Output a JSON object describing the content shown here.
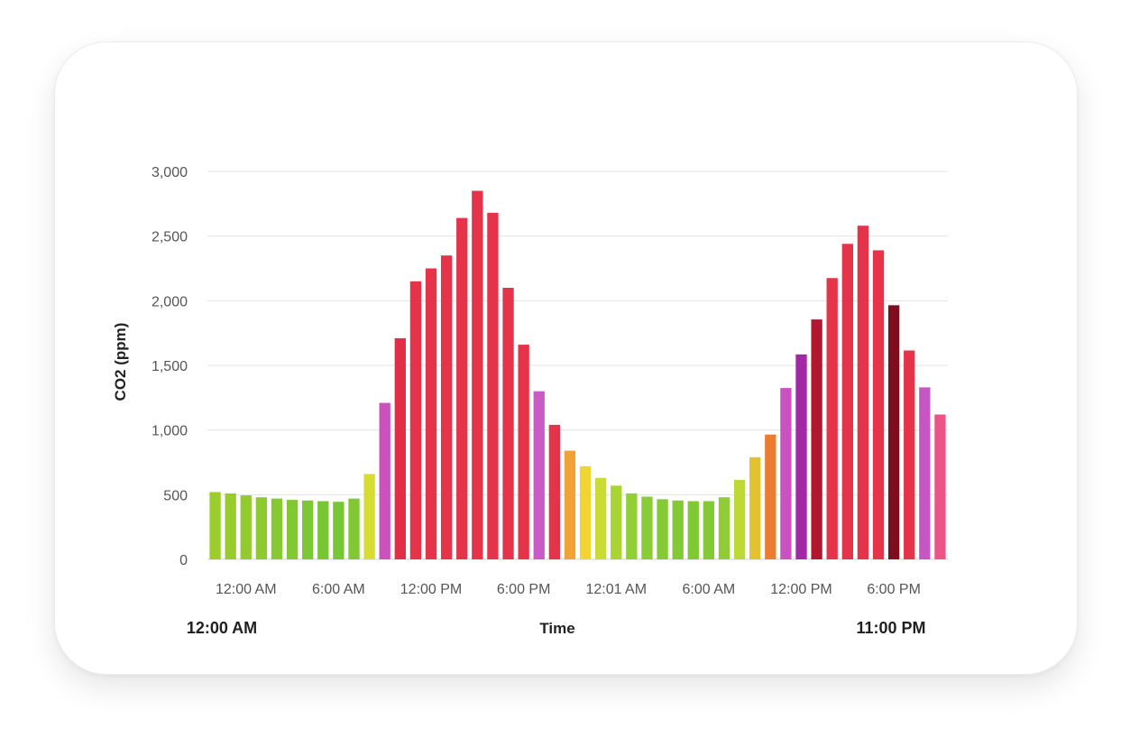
{
  "chart_data": {
    "type": "bar",
    "title": "",
    "xlabel": "Time",
    "ylabel": "CO2 (ppm)",
    "ylim": [
      0,
      3000
    ],
    "yticks": [
      0,
      500,
      1000,
      1500,
      2000,
      2500,
      3000
    ],
    "ytick_labels": [
      "0",
      "500",
      "1,000",
      "1,500",
      "2,000",
      "2,500",
      "3,000"
    ],
    "x_tick_labels": [
      {
        "bar_index": 2,
        "label": "12:00 AM"
      },
      {
        "bar_index": 8,
        "label": "6:00 AM"
      },
      {
        "bar_index": 14,
        "label": "12:00 PM"
      },
      {
        "bar_index": 20,
        "label": "6:00 PM"
      },
      {
        "bar_index": 26,
        "label": "12:01 AM"
      },
      {
        "bar_index": 32,
        "label": "6:00 AM"
      },
      {
        "bar_index": 38,
        "label": "12:00 PM"
      },
      {
        "bar_index": 44,
        "label": "6:00 PM"
      }
    ],
    "range_start_label": "12:00 AM",
    "range_end_label": "11:00 PM",
    "grid": true,
    "legend": "none",
    "values": [
      520,
      510,
      495,
      480,
      470,
      460,
      455,
      450,
      445,
      470,
      660,
      1210,
      1710,
      2150,
      2250,
      2350,
      2640,
      2850,
      2680,
      2100,
      1660,
      1300,
      1040,
      840,
      720,
      630,
      570,
      510,
      485,
      465,
      455,
      450,
      450,
      480,
      615,
      790,
      965,
      1325,
      1585,
      1855,
      2175,
      2440,
      2580,
      2390,
      1965,
      1615,
      1330,
      1120
    ],
    "colors": [
      "#9ccd2d",
      "#98cc2d",
      "#93cb2f",
      "#8dca31",
      "#87c932",
      "#81c833",
      "#7bc734",
      "#77c735",
      "#76c635",
      "#82c834",
      "#d6dc32",
      "#cb52bd",
      "#df2e45",
      "#e5344a",
      "#e5344a",
      "#e5344a",
      "#e5344a",
      "#e5344a",
      "#e5344a",
      "#e5344a",
      "#e5344a",
      "#c85bc6",
      "#e5334a",
      "#f0a237",
      "#f0d534",
      "#cbdb35",
      "#a8d533",
      "#91cf36",
      "#89cc35",
      "#84ca35",
      "#82ca35",
      "#80c935",
      "#81c935",
      "#8fcc35",
      "#bcd935",
      "#e2c231",
      "#ec7c30",
      "#c952c0",
      "#a229a6",
      "#b2172f",
      "#e5344a",
      "#e5344a",
      "#e5344a",
      "#e5344a",
      "#7e0d1d",
      "#e5344a",
      "#c656c4",
      "#ec5488"
    ]
  }
}
